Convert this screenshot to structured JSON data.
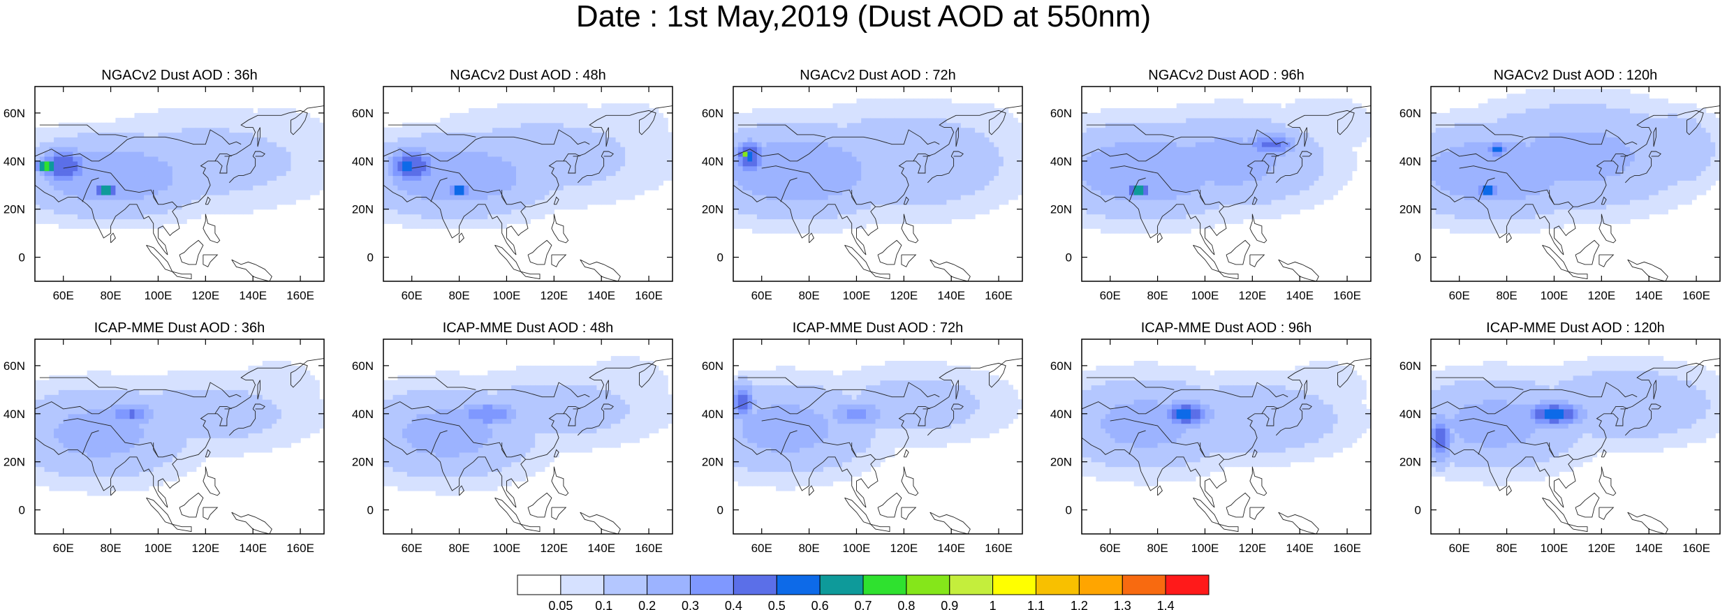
{
  "figure": {
    "title": "Date : 1st May,2019 (Dust AOD at 550nm)"
  },
  "axes": {
    "lon_ticks": [
      "60E",
      "80E",
      "100E",
      "120E",
      "140E",
      "160E"
    ],
    "lon_values": [
      60,
      80,
      100,
      120,
      140,
      160
    ],
    "lat_ticks": [
      "0",
      "20N",
      "40N",
      "60N"
    ],
    "lat_values": [
      0,
      20,
      40,
      60
    ],
    "lon_range": [
      48,
      170
    ],
    "lat_range": [
      -10,
      71
    ]
  },
  "panels": [
    {
      "title": "NGACv2 Dust AOD : 36h"
    },
    {
      "title": "NGACv2 Dust AOD : 48h"
    },
    {
      "title": "NGACv2 Dust AOD : 72h"
    },
    {
      "title": "NGACv2 Dust AOD : 96h"
    },
    {
      "title": "NGACv2 Dust AOD : 120h"
    },
    {
      "title": "ICAP-MME Dust AOD : 36h"
    },
    {
      "title": "ICAP-MME Dust AOD : 48h"
    },
    {
      "title": "ICAP-MME Dust AOD : 72h"
    },
    {
      "title": "ICAP-MME Dust AOD : 96h"
    },
    {
      "title": "ICAP-MME Dust AOD : 120h"
    }
  ],
  "colorbar": {
    "labels": [
      "0.05",
      "0.1",
      "0.2",
      "0.3",
      "0.4",
      "0.5",
      "0.6",
      "0.7",
      "0.8",
      "0.9",
      "1",
      "1.1",
      "1.2",
      "1.3",
      "1.4"
    ],
    "colors": [
      "#ffffff",
      "#d6e1ff",
      "#b4c7ff",
      "#9cb3ff",
      "#7f98ff",
      "#5b6fe8",
      "#0d6ae8",
      "#0e9a9a",
      "#2fe12f",
      "#85e61a",
      "#c4ee3c",
      "#ffff00",
      "#f8c000",
      "#ffa500",
      "#f86a10",
      "#ff1a1a"
    ]
  },
  "chart_data": [
    {
      "type": "heatmap",
      "title": "NGACv2 Dust AOD : 36h",
      "xlabel": "",
      "ylabel": "",
      "xlim": [
        48,
        170
      ],
      "ylim": [
        -10,
        71
      ],
      "blobs": [
        {
          "lon": 80,
          "lat": 34,
          "value": 0.3,
          "spread_lon": 30,
          "spread_lat": 12
        },
        {
          "lon": 60,
          "lat": 38,
          "value": 0.5,
          "spread_lon": 8,
          "spread_lat": 6
        },
        {
          "lon": 53,
          "lat": 38,
          "value": 0.85,
          "spread_lon": 3,
          "spread_lat": 2
        },
        {
          "lon": 78,
          "lat": 28,
          "value": 0.75,
          "spread_lon": 3,
          "spread_lat": 2
        },
        {
          "lon": 120,
          "lat": 40,
          "value": 0.15,
          "spread_lon": 40,
          "spread_lat": 15
        },
        {
          "lon": 150,
          "lat": 50,
          "value": 0.1,
          "spread_lon": 18,
          "spread_lat": 10
        }
      ]
    },
    {
      "type": "heatmap",
      "title": "NGACv2 Dust AOD : 48h",
      "xlabel": "",
      "ylabel": "",
      "xlim": [
        48,
        170
      ],
      "ylim": [
        -10,
        71
      ],
      "blobs": [
        {
          "lon": 78,
          "lat": 34,
          "value": 0.3,
          "spread_lon": 30,
          "spread_lat": 12
        },
        {
          "lon": 60,
          "lat": 38,
          "value": 0.5,
          "spread_lon": 8,
          "spread_lat": 6
        },
        {
          "lon": 58,
          "lat": 38,
          "value": 0.65,
          "spread_lon": 3,
          "spread_lat": 2
        },
        {
          "lon": 80,
          "lat": 28,
          "value": 0.6,
          "spread_lon": 3,
          "spread_lat": 2
        },
        {
          "lon": 115,
          "lat": 42,
          "value": 0.15,
          "spread_lon": 40,
          "spread_lat": 15
        },
        {
          "lon": 150,
          "lat": 55,
          "value": 0.1,
          "spread_lon": 15,
          "spread_lat": 8
        }
      ]
    },
    {
      "type": "heatmap",
      "title": "NGACv2 Dust AOD : 72h",
      "xlabel": "",
      "ylabel": "",
      "xlim": [
        48,
        170
      ],
      "ylim": [
        -10,
        71
      ],
      "blobs": [
        {
          "lon": 75,
          "lat": 36,
          "value": 0.3,
          "spread_lon": 30,
          "spread_lat": 14
        },
        {
          "lon": 55,
          "lat": 42,
          "value": 0.55,
          "spread_lon": 5,
          "spread_lat": 5
        },
        {
          "lon": 53,
          "lat": 43,
          "value": 0.8,
          "spread_lon": 2,
          "spread_lat": 2
        },
        {
          "lon": 120,
          "lat": 40,
          "value": 0.2,
          "spread_lon": 35,
          "spread_lat": 16
        },
        {
          "lon": 150,
          "lat": 50,
          "value": 0.1,
          "spread_lon": 18,
          "spread_lat": 12
        }
      ]
    },
    {
      "type": "heatmap",
      "title": "NGACv2 Dust AOD : 96h",
      "xlabel": "",
      "ylabel": "",
      "xlim": [
        48,
        170
      ],
      "ylim": [
        -10,
        71
      ],
      "blobs": [
        {
          "lon": 75,
          "lat": 36,
          "value": 0.3,
          "spread_lon": 30,
          "spread_lat": 14
        },
        {
          "lon": 72,
          "lat": 28,
          "value": 0.75,
          "spread_lon": 3,
          "spread_lat": 2
        },
        {
          "lon": 128,
          "lat": 47,
          "value": 0.45,
          "spread_lon": 8,
          "spread_lat": 4
        },
        {
          "lon": 110,
          "lat": 40,
          "value": 0.25,
          "spread_lon": 30,
          "spread_lat": 14
        },
        {
          "lon": 150,
          "lat": 55,
          "value": 0.1,
          "spread_lon": 18,
          "spread_lat": 10
        }
      ]
    },
    {
      "type": "heatmap",
      "title": "NGACv2 Dust AOD : 120h",
      "xlabel": "",
      "ylabel": "",
      "xlim": [
        48,
        170
      ],
      "ylim": [
        -10,
        71
      ],
      "blobs": [
        {
          "lon": 75,
          "lat": 36,
          "value": 0.3,
          "spread_lon": 30,
          "spread_lat": 14
        },
        {
          "lon": 76,
          "lat": 45,
          "value": 0.6,
          "spread_lon": 3,
          "spread_lat": 2
        },
        {
          "lon": 72,
          "lat": 28,
          "value": 0.65,
          "spread_lon": 3,
          "spread_lat": 2
        },
        {
          "lon": 110,
          "lat": 42,
          "value": 0.25,
          "spread_lon": 35,
          "spread_lat": 16
        },
        {
          "lon": 150,
          "lat": 45,
          "value": 0.2,
          "spread_lon": 15,
          "spread_lat": 12
        }
      ]
    },
    {
      "type": "heatmap",
      "title": "ICAP-MME Dust AOD : 36h",
      "xlabel": "",
      "ylabel": "",
      "xlim": [
        48,
        170
      ],
      "ylim": [
        -10,
        71
      ],
      "blobs": [
        {
          "lon": 75,
          "lat": 32,
          "value": 0.25,
          "spread_lon": 28,
          "spread_lat": 14
        },
        {
          "lon": 88,
          "lat": 40,
          "value": 0.4,
          "spread_lon": 8,
          "spread_lat": 4
        },
        {
          "lon": 89,
          "lat": 40,
          "value": 0.75,
          "spread_lon": 1,
          "spread_lat": 1
        },
        {
          "lon": 120,
          "lat": 40,
          "value": 0.15,
          "spread_lon": 35,
          "spread_lat": 12
        },
        {
          "lon": 150,
          "lat": 50,
          "value": 0.1,
          "spread_lon": 15,
          "spread_lat": 10
        }
      ]
    },
    {
      "type": "heatmap",
      "title": "ICAP-MME Dust AOD : 48h",
      "xlabel": "",
      "ylabel": "",
      "xlim": [
        48,
        170
      ],
      "ylim": [
        -10,
        71
      ],
      "blobs": [
        {
          "lon": 75,
          "lat": 32,
          "value": 0.25,
          "spread_lon": 28,
          "spread_lat": 14
        },
        {
          "lon": 92,
          "lat": 40,
          "value": 0.4,
          "spread_lon": 10,
          "spread_lat": 4
        },
        {
          "lon": 120,
          "lat": 42,
          "value": 0.15,
          "spread_lon": 35,
          "spread_lat": 12
        },
        {
          "lon": 150,
          "lat": 52,
          "value": 0.1,
          "spread_lon": 15,
          "spread_lat": 10
        }
      ]
    },
    {
      "type": "heatmap",
      "title": "ICAP-MME Dust AOD : 72h",
      "xlabel": "",
      "ylabel": "",
      "xlim": [
        48,
        170
      ],
      "ylim": [
        -10,
        71
      ],
      "blobs": [
        {
          "lon": 70,
          "lat": 34,
          "value": 0.25,
          "spread_lon": 28,
          "spread_lat": 14
        },
        {
          "lon": 52,
          "lat": 45,
          "value": 0.45,
          "spread_lon": 4,
          "spread_lat": 6
        },
        {
          "lon": 100,
          "lat": 40,
          "value": 0.35,
          "spread_lon": 10,
          "spread_lat": 4
        },
        {
          "lon": 125,
          "lat": 44,
          "value": 0.15,
          "spread_lon": 30,
          "spread_lat": 12
        }
      ]
    },
    {
      "type": "heatmap",
      "title": "ICAP-MME Dust AOD : 96h",
      "xlabel": "",
      "ylabel": "",
      "xlim": [
        48,
        170
      ],
      "ylim": [
        -10,
        71
      ],
      "blobs": [
        {
          "lon": 75,
          "lat": 36,
          "value": 0.25,
          "spread_lon": 28,
          "spread_lat": 14
        },
        {
          "lon": 92,
          "lat": 40,
          "value": 0.55,
          "spread_lon": 8,
          "spread_lat": 4
        },
        {
          "lon": 90,
          "lat": 40,
          "value": 0.95,
          "spread_lon": 3,
          "spread_lat": 1
        },
        {
          "lon": 120,
          "lat": 38,
          "value": 0.2,
          "spread_lon": 30,
          "spread_lat": 12
        },
        {
          "lon": 150,
          "lat": 50,
          "value": 0.1,
          "spread_lon": 15,
          "spread_lat": 10
        }
      ]
    },
    {
      "type": "heatmap",
      "title": "ICAP-MME Dust AOD : 120h",
      "xlabel": "",
      "ylabel": "",
      "xlim": [
        48,
        170
      ],
      "ylim": [
        -10,
        71
      ],
      "blobs": [
        {
          "lon": 75,
          "lat": 36,
          "value": 0.25,
          "spread_lon": 28,
          "spread_lat": 14
        },
        {
          "lon": 52,
          "lat": 30,
          "value": 0.45,
          "spread_lon": 4,
          "spread_lat": 8
        },
        {
          "lon": 100,
          "lat": 40,
          "value": 0.55,
          "spread_lon": 10,
          "spread_lat": 4
        },
        {
          "lon": 98,
          "lat": 40,
          "value": 0.85,
          "spread_lon": 4,
          "spread_lat": 1
        },
        {
          "lon": 130,
          "lat": 44,
          "value": 0.2,
          "spread_lon": 30,
          "spread_lat": 12
        },
        {
          "lon": 160,
          "lat": 45,
          "value": 0.1,
          "spread_lon": 10,
          "spread_lat": 10
        }
      ]
    }
  ]
}
